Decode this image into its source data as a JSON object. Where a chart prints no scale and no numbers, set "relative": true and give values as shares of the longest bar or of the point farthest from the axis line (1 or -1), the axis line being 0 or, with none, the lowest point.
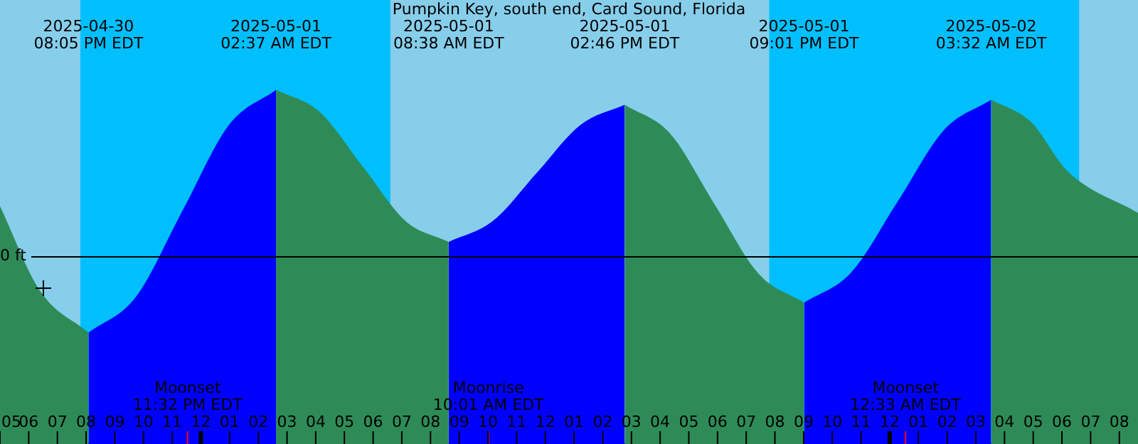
{
  "chart_data": {
    "type": "area",
    "title": "Pumpkin Key, south end, Card Sound, Florida",
    "relative": true,
    "legend": false,
    "x": [
      "2025-04-30T17:00",
      "2025-04-30T18:24",
      "2025-04-30T20:05",
      "2025-04-30T21:43",
      "2025-04-30T23:21",
      "2025-05-01T00:59",
      "2025-05-01T02:37",
      "2025-05-01T04:07",
      "2025-05-01T05:38",
      "2025-05-01T07:08",
      "2025-05-01T08:38",
      "2025-05-01T10:10",
      "2025-05-01T11:42",
      "2025-05-01T13:14",
      "2025-05-01T14:46",
      "2025-05-01T16:20",
      "2025-05-01T17:53",
      "2025-05-01T19:27",
      "2025-05-01T21:01",
      "2025-05-01T22:39",
      "2025-05-02T00:17",
      "2025-05-02T01:54",
      "2025-05-02T03:32",
      "2025-05-02T04:54",
      "2025-05-02T06:12",
      "2025-05-02T08:39"
    ],
    "series": [
      {
        "color": "#2e8b57",
        "values": [
          0.3,
          -0.21,
          -0.46,
          null,
          null,
          null,
          1,
          0.87,
          0.54,
          0.21,
          0.085,
          null,
          null,
          null,
          0.91,
          0.74,
          0.315,
          -0.11,
          -0.28,
          null,
          null,
          null,
          0.94,
          0.81,
          0.51,
          0.26
        ]
      },
      {
        "color": "#0000ff",
        "values": [
          null,
          null,
          -0.46,
          -0.25,
          0.27,
          0.79,
          1,
          null,
          null,
          null,
          0.085,
          0.21,
          0.5,
          0.79,
          0.91,
          null,
          null,
          null,
          -0.28,
          -0.1,
          0.33,
          0.76,
          0.94,
          null,
          null,
          null
        ]
      }
    ],
    "xlim": [
      "2025-04-30T17:00",
      "2025-05-02T08:39"
    ],
    "xticks": [
      {
        "value": "2025-04-30T17:00",
        "label": "05"
      },
      {
        "value": "2025-04-30T18:00",
        "label": "06"
      },
      {
        "value": "2025-04-30T19:00",
        "label": "07"
      },
      {
        "value": "2025-04-30T20:00",
        "label": "08"
      },
      {
        "value": "2025-04-30T21:00",
        "label": "09"
      },
      {
        "value": "2025-04-30T22:00",
        "label": "10"
      },
      {
        "value": "2025-04-30T23:00",
        "label": "11"
      },
      {
        "value": "2025-05-01T00:00",
        "label": "12"
      },
      {
        "value": "2025-05-01T01:00",
        "label": "01"
      },
      {
        "value": "2025-05-01T02:00",
        "label": "02"
      },
      {
        "value": "2025-05-01T03:00",
        "label": "03"
      },
      {
        "value": "2025-05-01T04:00",
        "label": "04"
      },
      {
        "value": "2025-05-01T05:00",
        "label": "05"
      },
      {
        "value": "2025-05-01T06:00",
        "label": "06"
      },
      {
        "value": "2025-05-01T07:00",
        "label": "07"
      },
      {
        "value": "2025-05-01T08:00",
        "label": "08"
      },
      {
        "value": "2025-05-01T09:00",
        "label": "09"
      },
      {
        "value": "2025-05-01T10:00",
        "label": "10"
      },
      {
        "value": "2025-05-01T11:00",
        "label": "11"
      },
      {
        "value": "2025-05-01T12:00",
        "label": "12"
      },
      {
        "value": "2025-05-01T13:00",
        "label": "01"
      },
      {
        "value": "2025-05-01T14:00",
        "label": "02"
      },
      {
        "value": "2025-05-01T15:00",
        "label": "03"
      },
      {
        "value": "2025-05-01T16:00",
        "label": "04"
      },
      {
        "value": "2025-05-01T17:00",
        "label": "05"
      },
      {
        "value": "2025-05-01T18:00",
        "label": "06"
      },
      {
        "value": "2025-05-01T19:00",
        "label": "07"
      },
      {
        "value": "2025-05-01T20:00",
        "label": "08"
      },
      {
        "value": "2025-05-01T21:00",
        "label": "09"
      },
      {
        "value": "2025-05-01T22:00",
        "label": "10"
      },
      {
        "value": "2025-05-01T23:00",
        "label": "11"
      },
      {
        "value": "2025-05-02T00:00",
        "label": "12"
      },
      {
        "value": "2025-05-02T01:00",
        "label": "01"
      },
      {
        "value": "2025-05-02T02:00",
        "label": "02"
      },
      {
        "value": "2025-05-02T03:00",
        "label": "03"
      },
      {
        "value": "2025-05-02T04:00",
        "label": "04"
      },
      {
        "value": "2025-05-02T05:00",
        "label": "05"
      },
      {
        "value": "2025-05-02T06:00",
        "label": "06"
      },
      {
        "value": "2025-05-02T07:00",
        "label": "07"
      },
      {
        "value": "2025-05-02T08:00",
        "label": "08"
      }
    ],
    "bands": [
      {
        "axis": "x",
        "from": "2025-04-30T19:48",
        "to": "2025-05-01T06:36",
        "color": "#00bfff"
      },
      {
        "axis": "x",
        "from": "2025-05-01T19:48",
        "to": "2025-05-02T06:36",
        "color": "#00bfff"
      }
    ],
    "ref_lines": [
      {
        "axis": "y",
        "value": 0,
        "label": "0 ft",
        "color": "#000000"
      },
      {
        "axis": "x",
        "value": "2025-04-30T23:32",
        "label": "Moonset\n11:32 PM EDT",
        "color": "#ff0000"
      },
      {
        "axis": "x",
        "value": "2025-05-01T10:01",
        "label": "Moonrise\n10:01 AM EDT",
        "color": "#ff0000"
      },
      {
        "axis": "x",
        "value": "2025-05-02T00:33",
        "label": "Moonset\n12:33 AM EDT",
        "color": "#ff0000"
      }
    ],
    "annotations": [
      "2025-04-30\n08:05 PM EDT",
      "2025-05-01\n02:37 AM EDT",
      "2025-05-01\n08:38 AM EDT",
      "2025-05-01\n02:46 PM EDT",
      "2025-05-01\n09:01 PM EDT",
      "2025-05-02\n03:32 AM EDT"
    ]
  }
}
